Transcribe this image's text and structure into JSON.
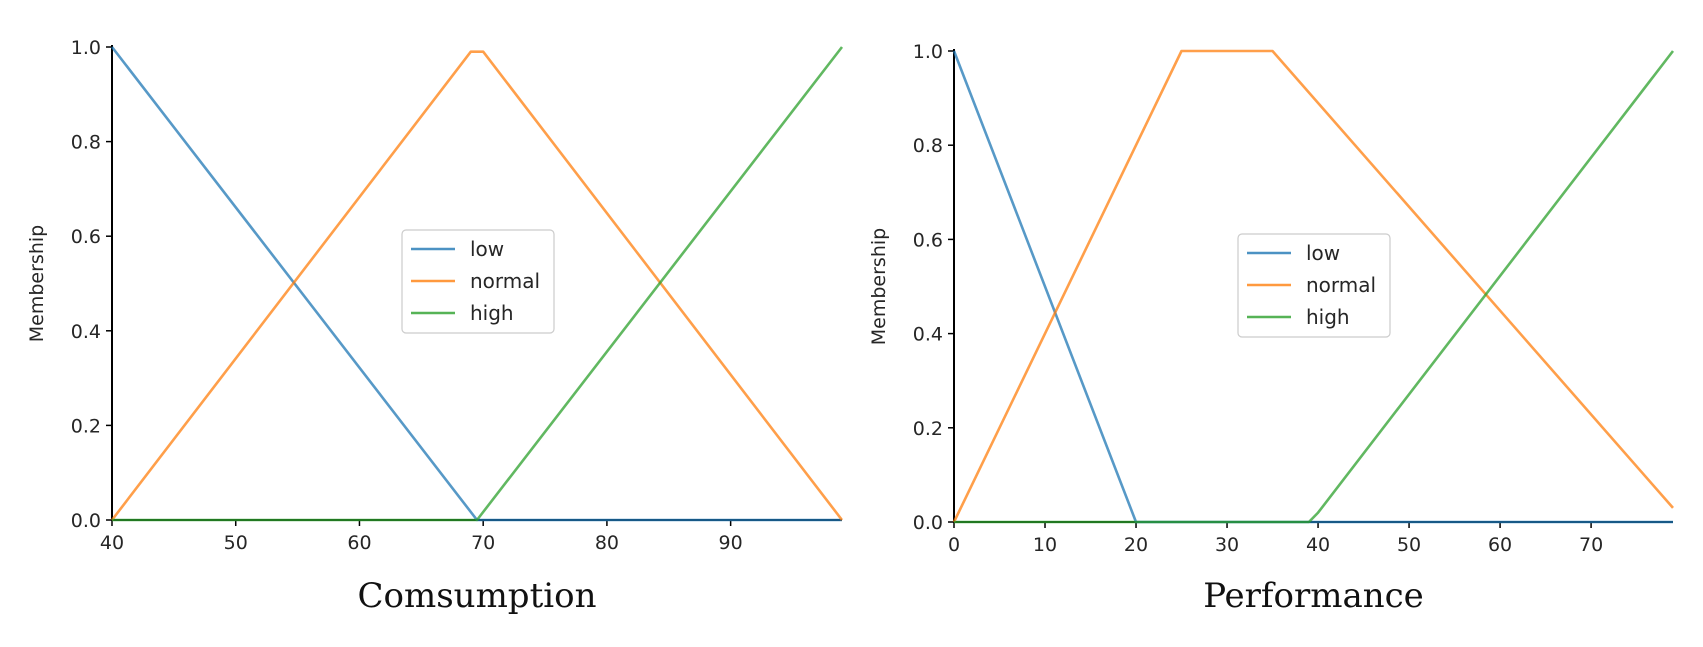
{
  "chart_data": [
    {
      "type": "line",
      "caption": "Comsumption",
      "xlabel": "",
      "ylabel": "Membership",
      "xlim": [
        40,
        99
      ],
      "ylim": [
        0,
        1
      ],
      "x_ticks": [
        40,
        50,
        60,
        70,
        80,
        90
      ],
      "y_ticks": [
        "0.0",
        "0.2",
        "0.4",
        "0.6",
        "0.8",
        "1.0"
      ],
      "legend_position": "center",
      "series": [
        {
          "name": "low",
          "color": "#1f77b4",
          "x": [
            40,
            69.5,
            99
          ],
          "y": [
            1.0,
            0.0,
            0.0
          ]
        },
        {
          "name": "normal",
          "color": "#ff7f0e",
          "x": [
            40,
            69,
            70,
            99
          ],
          "y": [
            0.0,
            0.99,
            0.99,
            0.0
          ]
        },
        {
          "name": "high",
          "color": "#2ca02c",
          "x": [
            40,
            69.5,
            99
          ],
          "y": [
            0.0,
            0.0,
            1.0
          ]
        }
      ]
    },
    {
      "type": "line",
      "caption": "Performance",
      "xlabel": "",
      "ylabel": "Membership",
      "xlim": [
        0,
        79
      ],
      "ylim": [
        0,
        1
      ],
      "x_ticks": [
        0,
        10,
        20,
        30,
        40,
        50,
        60,
        70
      ],
      "y_ticks": [
        "0.0",
        "0.2",
        "0.4",
        "0.6",
        "0.8",
        "1.0"
      ],
      "legend_position": "center",
      "series": [
        {
          "name": "low",
          "color": "#1f77b4",
          "x": [
            0,
            20,
            79
          ],
          "y": [
            1.0,
            0.0,
            0.0
          ]
        },
        {
          "name": "normal",
          "color": "#ff7f0e",
          "x": [
            0,
            25,
            35,
            79
          ],
          "y": [
            0.0,
            1.0,
            1.0,
            0.03
          ]
        },
        {
          "name": "high",
          "color": "#2ca02c",
          "x": [
            0,
            39,
            40,
            79
          ],
          "y": [
            0.0,
            0.0,
            0.02,
            1.0
          ]
        }
      ]
    }
  ]
}
